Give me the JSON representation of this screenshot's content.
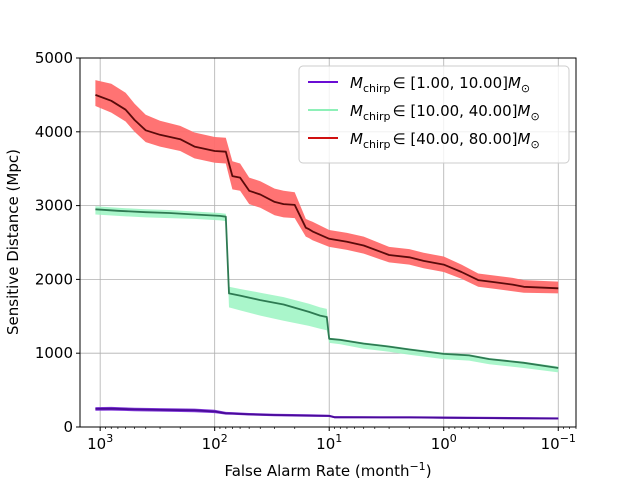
{
  "chart_data": {
    "type": "line",
    "title": "",
    "xlabel": "False Alarm Rate (month$^{-1}$)",
    "xlabel_text": "False Alarm Rate (month",
    "xlabel_sup": "−1",
    "xlabel_close": ")",
    "ylabel": "Sensitive Distance (Mpc)",
    "xscale": "log",
    "xaxis_reversed": true,
    "xlim": [
      1500,
      0.07
    ],
    "ylim": [
      0,
      5000
    ],
    "grid": true,
    "legend_position": "top-right",
    "x_ticks": [
      {
        "value": 1000,
        "base": "10",
        "exp": "3"
      },
      {
        "value": 100,
        "base": "10",
        "exp": "2"
      },
      {
        "value": 10,
        "base": "10",
        "exp": "1"
      },
      {
        "value": 1,
        "base": "10",
        "exp": "0"
      },
      {
        "value": 0.1,
        "base": "10",
        "exp": "−1"
      }
    ],
    "y_ticks": [
      {
        "value": 0,
        "label": "0"
      },
      {
        "value": 1000,
        "label": "1000"
      },
      {
        "value": 2000,
        "label": "2000"
      },
      {
        "value": 3000,
        "label": "3000"
      },
      {
        "value": 4000,
        "label": "4000"
      },
      {
        "value": 5000,
        "label": "5000"
      }
    ],
    "series": [
      {
        "name": "M_chirp ∈ [1.00, 10.00] M_⊙",
        "legend_range": "∈ [1.00, 10.00]",
        "fill_color": "#7a2fd6",
        "line_color": "#4a0a9a",
        "legend_color": "#6a0dd4",
        "x": [
          1100,
          800,
          500,
          300,
          150,
          100,
          80,
          70,
          50,
          30,
          15,
          10,
          9,
          5,
          2,
          1,
          0.5,
          0.2,
          0.1
        ],
        "y": [
          245,
          248,
          238,
          232,
          226,
          210,
          185,
          183,
          172,
          162,
          155,
          150,
          132,
          131,
          130,
          126,
          122,
          118,
          115
        ],
        "lower": [
          220,
          222,
          214,
          208,
          200,
          188,
          168,
          166,
          156,
          146,
          140,
          136,
          118,
          118,
          117,
          113,
          109,
          105,
          102
        ],
        "upper": [
          270,
          272,
          262,
          256,
          250,
          234,
          204,
          202,
          190,
          180,
          172,
          166,
          148,
          147,
          146,
          142,
          138,
          134,
          130
        ]
      },
      {
        "name": "M_chirp ∈ [10.00, 40.00] M_⊙",
        "legend_range": "∈ [10.00, 40.00]",
        "fill_color": "#9bf5c2",
        "line_color": "#2e7a52",
        "legend_color": "#8ef0b8",
        "x": [
          1100,
          700,
          400,
          250,
          150,
          90,
          80,
          75,
          60,
          40,
          25,
          15,
          12,
          10.5,
          10,
          8,
          5,
          3,
          2,
          1,
          0.6,
          0.4,
          0.2,
          0.1
        ],
        "y": [
          2950,
          2930,
          2910,
          2900,
          2880,
          2860,
          2850,
          1810,
          1780,
          1720,
          1660,
          1560,
          1510,
          1490,
          1195,
          1180,
          1130,
          1090,
          1050,
          990,
          970,
          920,
          870,
          800
        ],
        "lower": [
          2880,
          2860,
          2840,
          2830,
          2820,
          2800,
          2790,
          1620,
          1580,
          1510,
          1440,
          1370,
          1330,
          1310,
          1140,
          1120,
          1060,
          1020,
          980,
          920,
          900,
          850,
          800,
          740
        ],
        "upper": [
          2990,
          2970,
          2950,
          2940,
          2920,
          2900,
          2890,
          1900,
          1870,
          1820,
          1760,
          1670,
          1620,
          1600,
          1210,
          1195,
          1145,
          1105,
          1065,
          1005,
          985,
          935,
          885,
          820
        ]
      },
      {
        "name": "M_chirp ∈ [40.00, 80.00] M_⊙",
        "legend_range": "∈ [40.00, 80.00]",
        "fill_color": "#ff6b6b",
        "line_color": "#5a0a0a",
        "legend_color": "#d01010",
        "x": [
          1100,
          800,
          600,
          500,
          400,
          300,
          200,
          150,
          100,
          80,
          70,
          60,
          50,
          40,
          30,
          25,
          20,
          16,
          15,
          14,
          10,
          7,
          5,
          3,
          2,
          1.5,
          1,
          0.7,
          0.5,
          0.35,
          0.25,
          0.2,
          0.1
        ],
        "y": [
          4500,
          4420,
          4300,
          4160,
          4020,
          3960,
          3900,
          3800,
          3740,
          3730,
          3400,
          3380,
          3200,
          3150,
          3050,
          3020,
          3010,
          2700,
          2680,
          2650,
          2550,
          2510,
          2460,
          2330,
          2300,
          2250,
          2200,
          2100,
          1990,
          1960,
          1930,
          1900,
          1880
        ],
        "lower": [
          4350,
          4260,
          4140,
          4000,
          3860,
          3800,
          3740,
          3640,
          3580,
          3570,
          3220,
          3200,
          3020,
          2970,
          2870,
          2840,
          2830,
          2580,
          2560,
          2530,
          2440,
          2400,
          2350,
          2230,
          2200,
          2150,
          2100,
          2010,
          1900,
          1870,
          1840,
          1820,
          1810
        ],
        "upper": [
          4700,
          4650,
          4530,
          4380,
          4230,
          4150,
          4080,
          3990,
          3930,
          3920,
          3600,
          3570,
          3380,
          3330,
          3230,
          3200,
          3180,
          2820,
          2800,
          2780,
          2670,
          2630,
          2580,
          2440,
          2410,
          2360,
          2310,
          2200,
          2080,
          2050,
          2020,
          1990,
          1970
        ]
      }
    ]
  }
}
